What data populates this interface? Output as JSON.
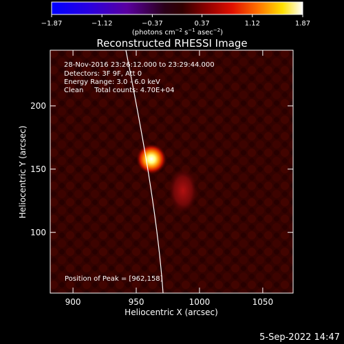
{
  "colorbar": {
    "min": -1.87,
    "max": 1.87,
    "tick_values": [
      -1.87,
      -1.12,
      -0.37,
      0.37,
      1.12,
      1.87
    ],
    "tick_labels": [
      "−1.87",
      "−1.12",
      "−0.37",
      "0.37",
      "1.12",
      "1.87"
    ],
    "unit_label_prefix": "(photons cm",
    "unit_exp1": "−2",
    "unit_mid": " s",
    "unit_exp2": "−1",
    "unit_mid2": " asec",
    "unit_exp3": "−2",
    "unit_suffix": ")",
    "colormap": "black-red-yellow-white with negative values blue/purple"
  },
  "image": {
    "title": "Reconstructed RHESSI Image",
    "info_lines": [
      "28-Nov-2016 23:26:12.000 to 23:29:44.000",
      "Detectors: 3F 9F, Att 0",
      "Energy Range: 3.0 - 6.0 keV",
      "Clean     Total counts: 4.70E+04"
    ],
    "peak_text": "Position of Peak = [962,158]",
    "x_label": "Heliocentric X (arcsec)",
    "y_label": "Heliocentric Y (arcsec)",
    "x_ticks": [
      900,
      950,
      1000,
      1050
    ],
    "y_ticks": [
      100,
      150,
      200
    ],
    "x_range": [
      882,
      1074
    ],
    "y_range": [
      52,
      244
    ],
    "peak": [
      962,
      158
    ],
    "secondary_source": [
      987,
      133
    ]
  },
  "footer": {
    "date": "5-Sep-2022 14:47"
  }
}
